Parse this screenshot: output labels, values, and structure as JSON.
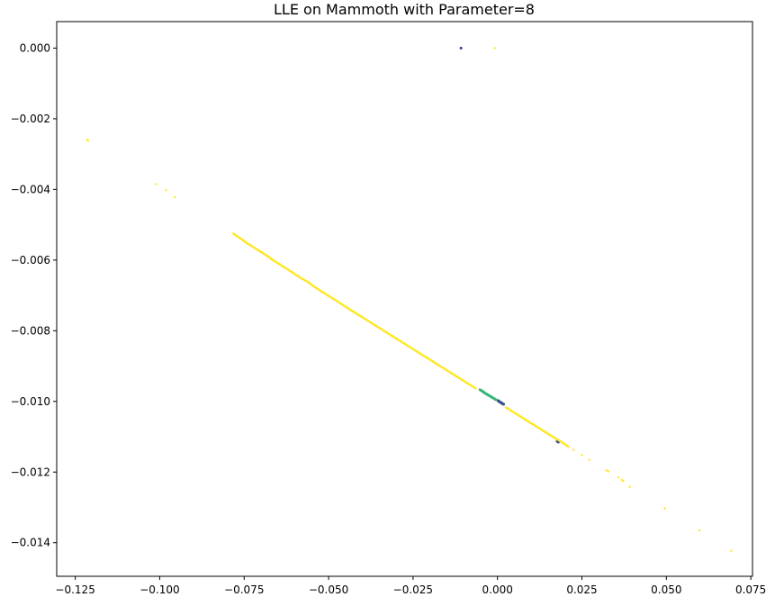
{
  "chart_data": {
    "type": "scatter",
    "title": "LLE on Mammoth with Parameter=8",
    "xlabel": "",
    "ylabel": "",
    "xlim": [
      -0.1305,
      0.0755
    ],
    "ylim": [
      -0.01495,
      0.00075
    ],
    "xticks": [
      -0.125,
      -0.1,
      -0.075,
      -0.05,
      -0.025,
      0.0,
      0.025,
      0.05,
      0.075
    ],
    "xtick_labels": [
      "−0.125",
      "−0.100",
      "−0.075",
      "−0.050",
      "−0.025",
      "0.000",
      "0.025",
      "0.050",
      "0.075"
    ],
    "yticks": [
      0.0,
      -0.002,
      -0.004,
      -0.006,
      -0.008,
      -0.01,
      -0.012,
      -0.014
    ],
    "ytick_labels": [
      "0.000",
      "−0.002",
      "−0.004",
      "−0.006",
      "−0.008",
      "−0.010",
      "−0.012",
      "−0.014"
    ],
    "grid": false,
    "colors": {
      "yellow": "#fde725",
      "green": "#35b779",
      "blue": "#3b528b"
    },
    "series": [
      {
        "color": "yellow",
        "x": [
          -0.1215,
          -0.1212,
          -0.101,
          -0.0982,
          -0.0955,
          -0.0782,
          -0.0772,
          -0.0762,
          -0.0752,
          -0.0742,
          -0.0728,
          -0.0712,
          -0.0698,
          -0.0682,
          -0.0662,
          -0.0648,
          -0.0632,
          -0.0612,
          -0.0595,
          -0.0578,
          -0.056,
          -0.0548,
          -0.0535,
          -0.0522,
          -0.051,
          -0.0498,
          -0.0485,
          -0.0472,
          -0.0458,
          -0.0445,
          -0.0432,
          -0.042,
          -0.0405,
          -0.039,
          -0.0375,
          -0.036,
          -0.0345,
          -0.033,
          -0.0315,
          -0.03,
          -0.0285,
          -0.027,
          -0.0255,
          -0.024,
          -0.0225,
          -0.021,
          -0.0195,
          -0.018,
          -0.0165,
          -0.015,
          -0.0135,
          -0.012,
          -0.0105,
          -0.009,
          -0.0075,
          -0.0065,
          0.0025,
          0.004,
          0.0055,
          0.007,
          0.0085,
          0.01,
          0.0115,
          0.013,
          0.0145,
          0.016,
          0.019,
          0.0205,
          0.021,
          0.0225,
          0.025,
          0.0272,
          0.0322,
          0.0328,
          0.0358,
          0.0368,
          0.0372,
          0.0392,
          0.0495,
          0.0598,
          0.0692,
          -0.0008
        ],
        "y": [
          -0.0026,
          -0.00262,
          -0.00385,
          -0.00402,
          -0.00422,
          -0.00525,
          -0.00532,
          -0.00538,
          -0.00545,
          -0.00552,
          -0.0056,
          -0.0057,
          -0.00578,
          -0.00588,
          -0.00602,
          -0.0061,
          -0.0062,
          -0.00632,
          -0.00643,
          -0.00653,
          -0.00663,
          -0.00672,
          -0.0068,
          -0.00688,
          -0.00695,
          -0.00703,
          -0.0071,
          -0.00718,
          -0.00727,
          -0.00735,
          -0.00743,
          -0.0075,
          -0.00759,
          -0.00768,
          -0.00777,
          -0.00786,
          -0.00795,
          -0.00804,
          -0.00813,
          -0.00822,
          -0.00831,
          -0.0084,
          -0.00849,
          -0.00858,
          -0.00867,
          -0.00876,
          -0.00885,
          -0.00894,
          -0.00903,
          -0.00912,
          -0.00921,
          -0.0093,
          -0.00939,
          -0.00948,
          -0.00957,
          -0.00963,
          -0.01017,
          -0.01026,
          -0.01035,
          -0.01044,
          -0.01053,
          -0.01062,
          -0.01071,
          -0.0108,
          -0.01089,
          -0.01098,
          -0.01115,
          -0.01125,
          -0.01128,
          -0.01137,
          -0.01152,
          -0.01165,
          -0.01195,
          -0.01198,
          -0.01215,
          -0.01222,
          -0.01225,
          -0.01242,
          -0.01303,
          -0.01365,
          -0.01423,
          0.0
        ]
      },
      {
        "color": "green",
        "x": [
          -0.0052,
          -0.0045,
          -0.0038,
          -0.0031,
          -0.0024,
          -0.0017,
          -0.001,
          -0.0005
        ],
        "y": [
          -0.00967,
          -0.00971,
          -0.00976,
          -0.0098,
          -0.00984,
          -0.00988,
          -0.00992,
          -0.00995
        ]
      },
      {
        "color": "blue",
        "x": [
          -0.0108,
          0.0002,
          0.0006,
          0.001,
          0.0014,
          0.0018,
          0.0177,
          0.018
        ],
        "y": [
          0.0,
          -0.00998,
          -0.01001,
          -0.01003,
          -0.01006,
          -0.01008,
          -0.01113,
          -0.01115
        ]
      }
    ]
  }
}
